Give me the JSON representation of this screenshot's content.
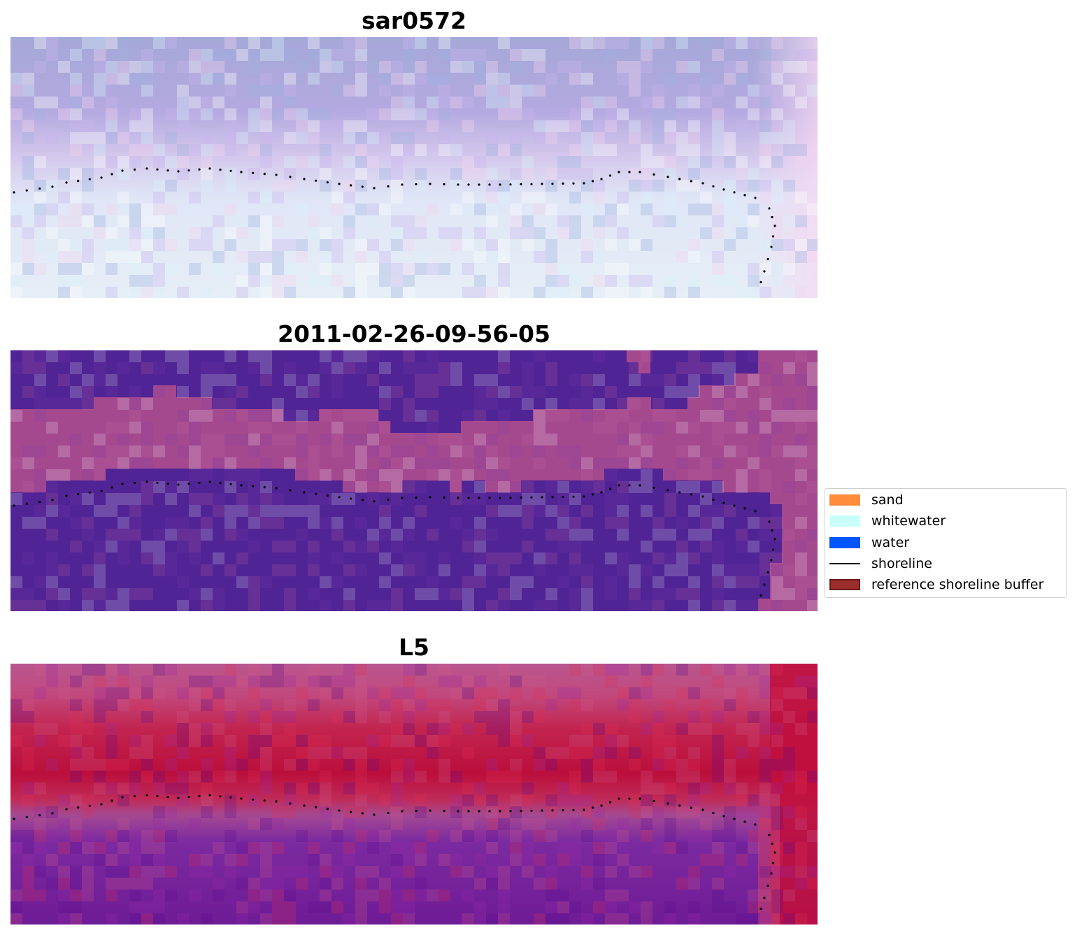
{
  "panels": [
    {
      "id": "rgb",
      "title": "sar0572"
    },
    {
      "id": "classified",
      "title": "2011-02-26-09-56-05"
    },
    {
      "id": "index",
      "title": "L5"
    }
  ],
  "legend": {
    "items": [
      {
        "label": "sand",
        "color": "#ff8c3a",
        "kind": "patch"
      },
      {
        "label": "whitewater",
        "color": "#c8fffb",
        "kind": "patch"
      },
      {
        "label": "water",
        "color": "#0055ff",
        "kind": "patch"
      },
      {
        "label": "shoreline",
        "color": "#000000",
        "kind": "line"
      },
      {
        "label": "reference shoreline buffer",
        "color": "#9b2d2d",
        "kind": "patch"
      }
    ]
  },
  "colors": {
    "rgb_sea": "#a7a9dd",
    "rgb_beach": "#e3e9f5",
    "class_water": "#512496",
    "class_other": "#a5498f",
    "index_high": "#be0e3a",
    "index_low": "#6e1896",
    "shoreline_dots": "#000000"
  }
}
